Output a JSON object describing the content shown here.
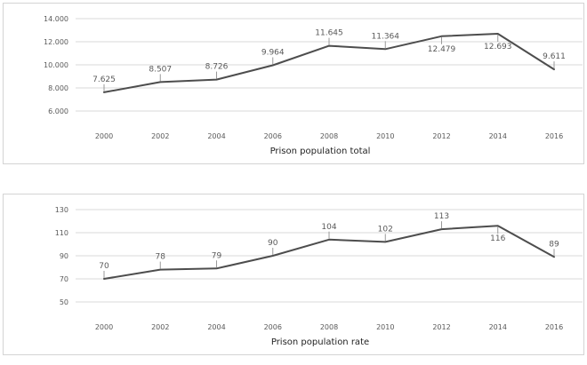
{
  "page": {
    "background": "#ffffff"
  },
  "colors": {
    "panel_border": "#d4d4d4",
    "gridline": "#d9d9d9",
    "series_line": "#4d4d4d",
    "leader_line": "#999999",
    "tick_text": "#595959",
    "data_label_text": "#595959",
    "title_text": "#1f1f1f"
  },
  "chart_data": [
    {
      "type": "line",
      "title": "Prison population total",
      "categories": [
        "2000",
        "2002",
        "2004",
        "2006",
        "2008",
        "2010",
        "2012",
        "2014",
        "2016"
      ],
      "values": [
        7625,
        8507,
        8726,
        9964,
        11645,
        11364,
        12479,
        12693,
        9611
      ],
      "point_labels": [
        "7.625",
        "8.507",
        "8.726",
        "9.964",
        "11.645",
        "11.364",
        "12.479",
        "12.693",
        "9.611"
      ],
      "labels_below_point": [
        false,
        false,
        false,
        false,
        false,
        false,
        true,
        true,
        false
      ],
      "y_tick_labels": [
        "14.000",
        "12.000",
        "10.000",
        "8.000",
        "6.000"
      ],
      "ylim": [
        6000,
        14000
      ],
      "xlabel": "Prison population total",
      "ylabel": "",
      "grid": "horizontal",
      "legend": "none"
    },
    {
      "type": "line",
      "title": "Prison population rate",
      "categories": [
        "2000",
        "2002",
        "2004",
        "2006",
        "2008",
        "2010",
        "2012",
        "2014",
        "2016"
      ],
      "values": [
        70,
        78,
        79,
        90,
        104,
        102,
        113,
        116,
        89
      ],
      "point_labels": [
        "70",
        "78",
        "79",
        "90",
        "104",
        "102",
        "113",
        "116",
        "89"
      ],
      "labels_below_point": [
        false,
        false,
        false,
        false,
        false,
        false,
        false,
        true,
        false
      ],
      "y_tick_labels": [
        "130",
        "110",
        "90",
        "70",
        "50"
      ],
      "ylim": [
        50,
        130
      ],
      "xlabel": "Prison population rate",
      "ylabel": "",
      "grid": "horizontal",
      "legend": "none"
    }
  ]
}
